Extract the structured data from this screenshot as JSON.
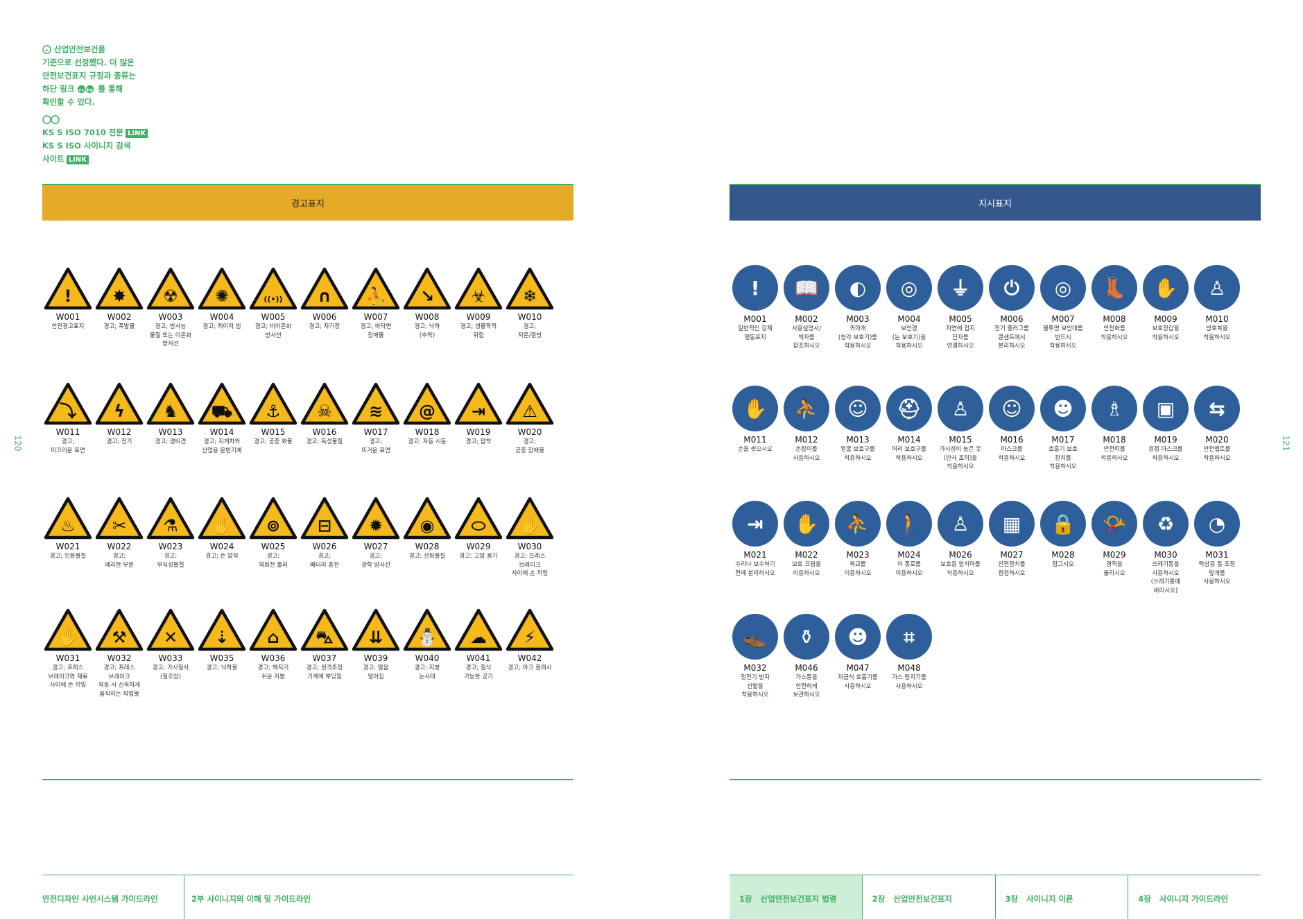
{
  "note": {
    "lines": [
      "산업안전보건을",
      "기준으로 선정했다. 더 많은",
      "안전보건표지 규정과 종류는",
      "하단 링크",
      "확인할 수 있다."
    ],
    "link_suffix": "를 통해",
    "links": [
      {
        "text": "KS S ISO 7010 전문",
        "badge": "LINK"
      },
      {
        "text": "KS S ISO 사이니지 검색",
        "badge": ""
      },
      {
        "text": "사이트",
        "badge": "LINK"
      }
    ]
  },
  "warning": {
    "title": "경고표지",
    "rows": [
      [
        {
          "code": "W001",
          "desc": "안전경고표지",
          "sym": "!"
        },
        {
          "code": "W002",
          "desc": "경고; 폭발물",
          "sym": "✸"
        },
        {
          "code": "W003",
          "desc": "경고; 방사능\n물질 또는 이온화\n방사선",
          "sym": "☢"
        },
        {
          "code": "W004",
          "desc": "경고; 레이저 빔",
          "sym": "✺"
        },
        {
          "code": "W005",
          "desc": "경고; 비이온화\n방사선",
          "sym": "((•))"
        },
        {
          "code": "W006",
          "desc": "경고; 자기장",
          "sym": "∩"
        },
        {
          "code": "W007",
          "desc": "경고; 바닥면\n장애물",
          "sym": "⛹"
        },
        {
          "code": "W008",
          "desc": "경고; 낙하\n(추락)",
          "sym": "↘"
        },
        {
          "code": "W009",
          "desc": "경고; 생물학적\n위험",
          "sym": "☣"
        },
        {
          "code": "W010",
          "desc": "경고;\n저온/결빙",
          "sym": "❄"
        }
      ],
      [
        {
          "code": "W011",
          "desc": "경고;\n미끄러운 표면",
          "sym": "⤵"
        },
        {
          "code": "W012",
          "desc": "경고; 전기",
          "sym": "ϟ"
        },
        {
          "code": "W013",
          "desc": "경고; 경비견",
          "sym": "♞"
        },
        {
          "code": "W014",
          "desc": "경고; 지게차와\n산업용 운반기계",
          "sym": "⛟"
        },
        {
          "code": "W015",
          "desc": "경고; 공중 화물",
          "sym": "⚓"
        },
        {
          "code": "W016",
          "desc": "경고; 독성물질",
          "sym": "☠"
        },
        {
          "code": "W017",
          "desc": "경고;\n뜨거운 표면",
          "sym": "≋"
        },
        {
          "code": "W018",
          "desc": "경고; 자동 시동",
          "sym": "@"
        },
        {
          "code": "W019",
          "desc": "경고; 압착",
          "sym": "⇥"
        },
        {
          "code": "W020",
          "desc": "경고;\n공중 장애물",
          "sym": "⚠"
        }
      ],
      [
        {
          "code": "W021",
          "desc": "경고; 인화물질",
          "sym": "♨"
        },
        {
          "code": "W022",
          "desc": "경고;\n예리한 부분",
          "sym": "✂"
        },
        {
          "code": "W023",
          "desc": "경고;\n부식성물질",
          "sym": "⚗"
        },
        {
          "code": "W024",
          "desc": "경고; 손 압착",
          "sym": "✋"
        },
        {
          "code": "W025",
          "desc": "경고;\n역회전 롤러",
          "sym": "⊚"
        },
        {
          "code": "W026",
          "desc": "경고;\n배터리 충전",
          "sym": "⊟"
        },
        {
          "code": "W027",
          "desc": "경고;\n광학 방사선",
          "sym": "✹"
        },
        {
          "code": "W028",
          "desc": "경고; 산화물질",
          "sym": "◉"
        },
        {
          "code": "W029",
          "desc": "경고; 고압 용기",
          "sym": "⬭"
        },
        {
          "code": "W030",
          "desc": "경고; 프레스\n브레이크\n사이에 손 끼임",
          "sym": "✋"
        }
      ],
      [
        {
          "code": "W031",
          "desc": "경고; 프레스\n브레이크와 재료\n사이에 손 끼임",
          "sym": "✋"
        },
        {
          "code": "W032",
          "desc": "경고; 프레스\n브레이크\n작동 시 신속하게\n움직이는 작업물",
          "sym": "⚒"
        },
        {
          "code": "W033",
          "desc": "경고; 가시철사\n(철조망)",
          "sym": "✕"
        },
        {
          "code": "W035",
          "desc": "경고; 낙하물",
          "sym": "⇣"
        },
        {
          "code": "W036",
          "desc": "경고; 깨지기\n쉬운 지붕",
          "sym": "⌂"
        },
        {
          "code": "W037",
          "desc": "경고; 원격조정\n기계에 부딪힘",
          "sym": "⛍"
        },
        {
          "code": "W039",
          "desc": "경고; 얼음\n떨어짐",
          "sym": "⇊"
        },
        {
          "code": "W040",
          "desc": "경고; 지붕\n눈사태",
          "sym": "⛄"
        },
        {
          "code": "W041",
          "desc": "경고; 질식\n가능한 공기",
          "sym": "☁"
        },
        {
          "code": "W042",
          "desc": "경고; 아크 플래시",
          "sym": "⚡"
        }
      ]
    ]
  },
  "mandatory": {
    "title": "지시표지",
    "rows": [
      [
        {
          "code": "M001",
          "desc": "일반적인 강제\n행동표지",
          "sym": "!"
        },
        {
          "code": "M002",
          "desc": "사용설명서/\n책자를\n참조하시오",
          "sym": "📖"
        },
        {
          "code": "M003",
          "desc": "귀마개\n(청각 보호기)를\n착용하시오",
          "sym": "◐"
        },
        {
          "code": "M004",
          "desc": "보안경\n(눈 보호기)을\n착용하시오",
          "sym": "◎"
        },
        {
          "code": "M005",
          "desc": "지면에 접지\n단자를\n연결하시오",
          "sym": "⏚"
        },
        {
          "code": "M006",
          "desc": "전기 플러그를\n콘센트에서\n분리하시오",
          "sym": "⏻"
        },
        {
          "code": "M007",
          "desc": "불투명 보안대를\n반드시\n착용하시오",
          "sym": "◎"
        },
        {
          "code": "M008",
          "desc": "안전화를\n착용하시오",
          "sym": "👢"
        },
        {
          "code": "M009",
          "desc": "보호장갑을\n착용하시오",
          "sym": "✋"
        },
        {
          "code": "M010",
          "desc": "방호복을\n착용하시오",
          "sym": "♙"
        }
      ],
      [
        {
          "code": "M011",
          "desc": "손을 씻으시오",
          "sym": "✋"
        },
        {
          "code": "M012",
          "desc": "손잡이를\n사용하시오",
          "sym": "⛹"
        },
        {
          "code": "M013",
          "desc": "얼굴 보호구를\n착용하시오",
          "sym": "☺"
        },
        {
          "code": "M014",
          "desc": "머리 보호구를\n착용하시오",
          "sym": "⛑"
        },
        {
          "code": "M015",
          "desc": "가시성이 높은 옷\n(반사 조끼)을\n착용하시오",
          "sym": "♙"
        },
        {
          "code": "M016",
          "desc": "마스크를\n착용하시오",
          "sym": "☺"
        },
        {
          "code": "M017",
          "desc": "호흡기 보호\n장치를\n착용하시오",
          "sym": "☻"
        },
        {
          "code": "M018",
          "desc": "안전띠를\n착용하시오",
          "sym": "♗"
        },
        {
          "code": "M019",
          "desc": "용접 마스크를\n착용하시오",
          "sym": "▣"
        },
        {
          "code": "M020",
          "desc": "안전벨트를\n착용하시오",
          "sym": "⇆"
        }
      ],
      [
        {
          "code": "M021",
          "desc": "수리나 보수하기\n전에 분리하시오",
          "sym": "⇥"
        },
        {
          "code": "M022",
          "desc": "보호 크림을\n이용하시오",
          "sym": "✋"
        },
        {
          "code": "M023",
          "desc": "육교를\n이용하시오",
          "sym": "⛹"
        },
        {
          "code": "M024",
          "desc": "이 통로를\n이용하시오",
          "sym": "🚶"
        },
        {
          "code": "M026",
          "desc": "보호용 앞치마를\n착용하시오",
          "sym": "♙"
        },
        {
          "code": "M027",
          "desc": "안전장치를\n점검하시오",
          "sym": "▦"
        },
        {
          "code": "M028",
          "desc": "잠그시오",
          "sym": "🔒"
        },
        {
          "code": "M029",
          "desc": "경적을\n울리시오",
          "sym": "📯"
        },
        {
          "code": "M030",
          "desc": "쓰레기통을\n사용하시오\n(쓰레기통에\n버리시오)",
          "sym": "♻"
        },
        {
          "code": "M031",
          "desc": "탁상용 톱 조정\n덮개를\n사용하시오",
          "sym": "◔"
        }
      ],
      [
        {
          "code": "M032",
          "desc": "정전기 방지\n신발을\n착용하시오",
          "sym": "👞"
        },
        {
          "code": "M046",
          "desc": "가스통을\n안전하게\n보관하시오",
          "sym": "⚱"
        },
        {
          "code": "M047",
          "desc": "자급식 호흡기를\n사용하시오",
          "sym": "☻"
        },
        {
          "code": "M048",
          "desc": "가스 탐지기를\n사용하시오",
          "sym": "⌗"
        }
      ]
    ]
  },
  "page_numbers": {
    "left": "120",
    "right": "121"
  },
  "footer": {
    "left": [
      "안전디자인 사인시스템 가이드라인",
      "2부 사이니지의 이해 및 가이드라인"
    ],
    "tabs": [
      {
        "num": "1장",
        "label": "산업안전보건표지 법령"
      },
      {
        "num": "2장",
        "label": "산업안전보건표지"
      },
      {
        "num": "3장",
        "label": "사이니지 이론"
      },
      {
        "num": "4장",
        "label": "사이니지 가이드라인"
      }
    ]
  },
  "colors": {
    "green": "#3fae63",
    "warning_yellow": "#f5b91c",
    "warning_header": "#e5aa28",
    "mandatory_blue": "#2f5f9a",
    "mandatory_header": "#34578c"
  }
}
